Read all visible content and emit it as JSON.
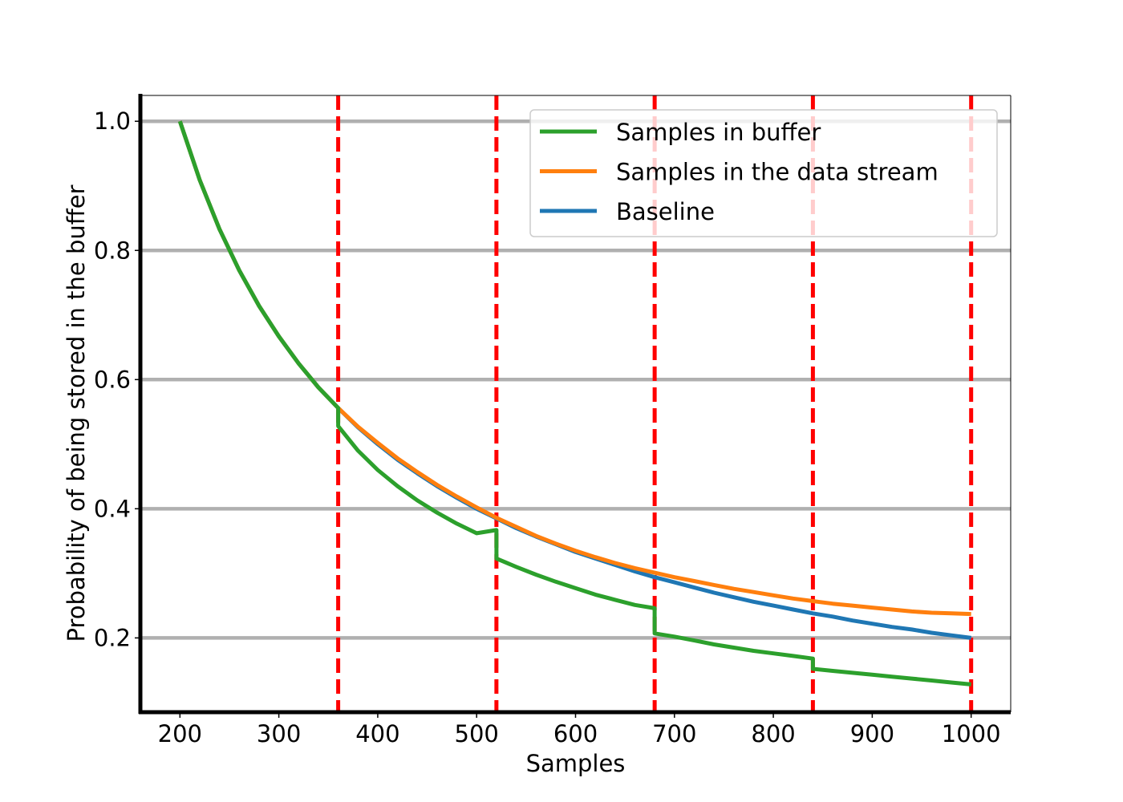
{
  "chart_data": {
    "type": "line",
    "title": "",
    "xlabel": "Samples",
    "ylabel": "Probability of being stored in the buffer",
    "xlim": [
      160,
      1040
    ],
    "ylim": [
      0.085,
      1.04
    ],
    "x_ticks": [
      200,
      300,
      400,
      500,
      600,
      700,
      800,
      900,
      1000
    ],
    "x_tick_labels": [
      "200",
      "300",
      "400",
      "500",
      "600",
      "700",
      "800",
      "900",
      "1000"
    ],
    "y_ticks": [
      0.2,
      0.4,
      0.6,
      0.8,
      1.0
    ],
    "y_tick_labels": [
      "0.2",
      "0.4",
      "0.6",
      "0.8",
      "1.0"
    ],
    "grid": "horizontal",
    "legend_position": "top-right",
    "task_boundaries": [
      360,
      520,
      680,
      840,
      1000
    ],
    "colors": {
      "boundary": "#ff0000",
      "grid": "#b0b0b0",
      "axis": "#000000"
    },
    "series": [
      {
        "name": "Samples in buffer",
        "color": "#2ca02c",
        "x": [
          200,
          220,
          240,
          260,
          280,
          300,
          320,
          340,
          360,
          360,
          380,
          400,
          420,
          440,
          460,
          480,
          500,
          520,
          520,
          540,
          560,
          580,
          600,
          620,
          640,
          660,
          680,
          680,
          700,
          720,
          740,
          760,
          780,
          800,
          820,
          840,
          840,
          860,
          880,
          900,
          920,
          940,
          960,
          980,
          1000
        ],
        "values": [
          1.0,
          0.909,
          0.833,
          0.769,
          0.714,
          0.667,
          0.625,
          0.588,
          0.556,
          0.528,
          0.49,
          0.46,
          0.435,
          0.413,
          0.394,
          0.377,
          0.362,
          0.367,
          0.323,
          0.31,
          0.298,
          0.287,
          0.277,
          0.267,
          0.259,
          0.251,
          0.246,
          0.207,
          0.202,
          0.196,
          0.19,
          0.185,
          0.18,
          0.176,
          0.172,
          0.168,
          0.152,
          0.149,
          0.146,
          0.143,
          0.14,
          0.137,
          0.134,
          0.131,
          0.128
        ]
      },
      {
        "name": "Samples in the data stream",
        "color": "#ff7f0e",
        "x": [
          200,
          220,
          240,
          260,
          280,
          300,
          320,
          340,
          360,
          380,
          400,
          420,
          440,
          460,
          480,
          500,
          520,
          540,
          560,
          580,
          600,
          620,
          640,
          660,
          680,
          700,
          720,
          740,
          760,
          780,
          800,
          820,
          840,
          860,
          880,
          900,
          920,
          940,
          960,
          980,
          1000
        ],
        "values": [
          1.0,
          0.909,
          0.833,
          0.769,
          0.714,
          0.667,
          0.625,
          0.588,
          0.556,
          0.527,
          0.502,
          0.478,
          0.457,
          0.437,
          0.419,
          0.402,
          0.386,
          0.372,
          0.358,
          0.346,
          0.335,
          0.325,
          0.316,
          0.308,
          0.301,
          0.294,
          0.288,
          0.282,
          0.276,
          0.271,
          0.266,
          0.261,
          0.257,
          0.253,
          0.25,
          0.247,
          0.244,
          0.241,
          0.239,
          0.238,
          0.237
        ]
      },
      {
        "name": "Baseline",
        "color": "#1f77b4",
        "x": [
          200,
          220,
          240,
          260,
          280,
          300,
          320,
          340,
          360,
          380,
          400,
          420,
          440,
          460,
          480,
          500,
          520,
          540,
          560,
          580,
          600,
          620,
          640,
          660,
          680,
          700,
          720,
          740,
          760,
          780,
          800,
          820,
          840,
          860,
          880,
          900,
          920,
          940,
          960,
          980,
          1000
        ],
        "values": [
          1.0,
          0.909,
          0.833,
          0.769,
          0.714,
          0.667,
          0.625,
          0.588,
          0.556,
          0.526,
          0.5,
          0.476,
          0.455,
          0.435,
          0.417,
          0.4,
          0.385,
          0.37,
          0.357,
          0.345,
          0.333,
          0.323,
          0.313,
          0.303,
          0.294,
          0.286,
          0.278,
          0.27,
          0.263,
          0.256,
          0.25,
          0.244,
          0.238,
          0.233,
          0.227,
          0.222,
          0.217,
          0.213,
          0.208,
          0.204,
          0.2
        ]
      }
    ]
  }
}
